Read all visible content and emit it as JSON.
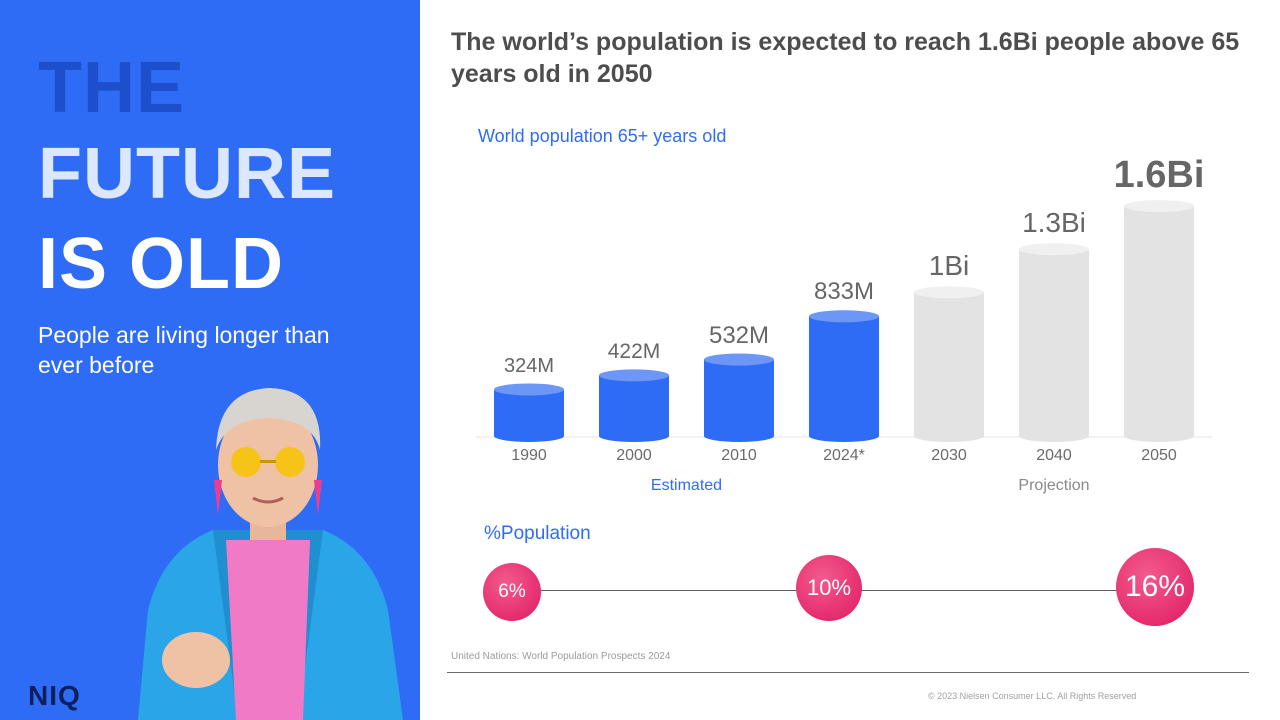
{
  "left_panel": {
    "hero_line_1": "THE",
    "hero_line_2": "FUTURE",
    "hero_line_3": "IS OLD",
    "subtitle": "People are living longer than ever before",
    "logo": "NIQ",
    "background_color": "#2f6cf6"
  },
  "headline": "The world’s population is expected to reach 1.6Bi people above 65 years old in 2050",
  "chart_data": {
    "type": "bar",
    "title": "World population 65+ years old",
    "categories": [
      "1990",
      "2000",
      "2010",
      "2024*",
      "2030",
      "2040",
      "2050"
    ],
    "values": [
      324,
      422,
      532,
      833,
      1000,
      1300,
      1600
    ],
    "unit": "M",
    "data_labels": [
      "324M",
      "422M",
      "532M",
      "833M",
      "1Bi",
      "1.3Bi",
      "1.6Bi"
    ],
    "groups": [
      {
        "label": "Estimated",
        "categories": [
          "1990",
          "2000",
          "2010",
          "2024*"
        ],
        "color": "#2f6cf6"
      },
      {
        "label": "Projection",
        "categories": [
          "2030",
          "2040",
          "2050"
        ],
        "color": "#e0e0e0"
      }
    ]
  },
  "population_share": {
    "label": "%Population",
    "points": [
      {
        "value": "6%",
        "color": "#e8296f"
      },
      {
        "value": "10%",
        "color": "#e8296f"
      },
      {
        "value": "16%",
        "color": "#e8296f"
      }
    ]
  },
  "footer": {
    "source": "United Nations: World Population Prospects 2024",
    "copyright": "© 2023 Nielsen Consumer LLC. All Rights Reserved"
  }
}
